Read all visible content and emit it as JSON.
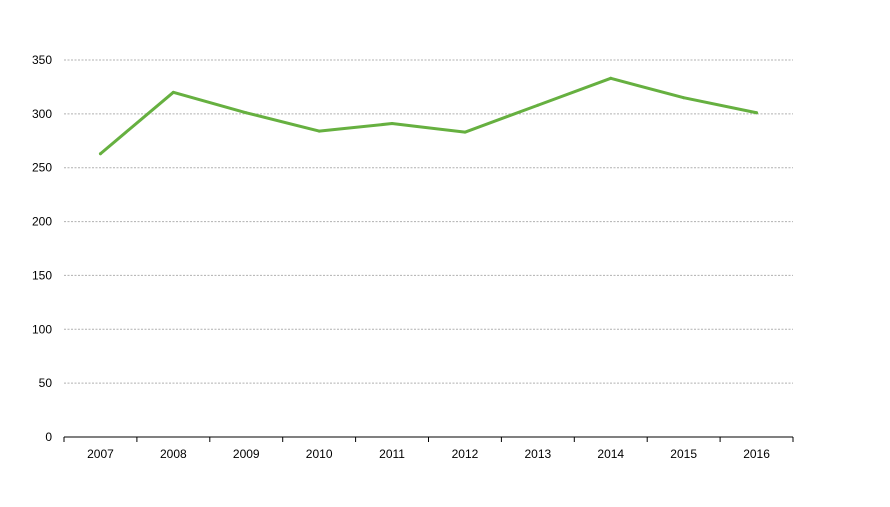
{
  "chart_data": {
    "type": "line",
    "title": "",
    "xlabel": "",
    "ylabel": "",
    "categories": [
      "2007",
      "2008",
      "2009",
      "2010",
      "2011",
      "2012",
      "2013",
      "2014",
      "2015",
      "2016"
    ],
    "series": [
      {
        "values": [
          263,
          320,
          301,
          284,
          291,
          283,
          308,
          333,
          315,
          301
        ],
        "color": "#66b040"
      }
    ],
    "ylim": [
      0,
      350
    ],
    "yticks": [
      "0",
      "50",
      "100",
      "150",
      "200",
      "250",
      "300",
      "350"
    ],
    "grid": true,
    "legend": "none"
  }
}
